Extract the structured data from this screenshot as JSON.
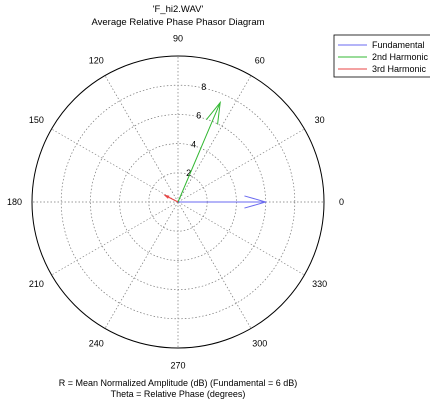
{
  "chart_data": {
    "type": "polar",
    "title": "'F_hi2.WAV'",
    "subtitle": "Average Relative Phase Phasor Diagram",
    "r_ticks": [
      2,
      4,
      6,
      8
    ],
    "r_max": 10,
    "theta_ticks": [
      0,
      30,
      60,
      90,
      120,
      150,
      180,
      210,
      240,
      270,
      300,
      330
    ],
    "theta_labels": [
      "0",
      "30",
      "60",
      "90",
      "120",
      "150",
      "180",
      "210",
      "240",
      "270",
      "300",
      "330"
    ],
    "grid": true,
    "legend_position": "top-right",
    "series": [
      {
        "name": "Fundamental",
        "color": "#6a6af0",
        "r": 6.0,
        "theta_deg": 0
      },
      {
        "name": "2nd Harmonic",
        "color": "#33b833",
        "r": 7.4,
        "theta_deg": 67
      },
      {
        "name": "3rd Harmonic",
        "color": "#e84444",
        "r": 1.0,
        "theta_deg": 153
      }
    ],
    "notes": [
      "R = Mean Normalized Amplitude (dB) (Fundamental = 6 dB)",
      "Theta = Relative Phase (degrees)"
    ]
  }
}
